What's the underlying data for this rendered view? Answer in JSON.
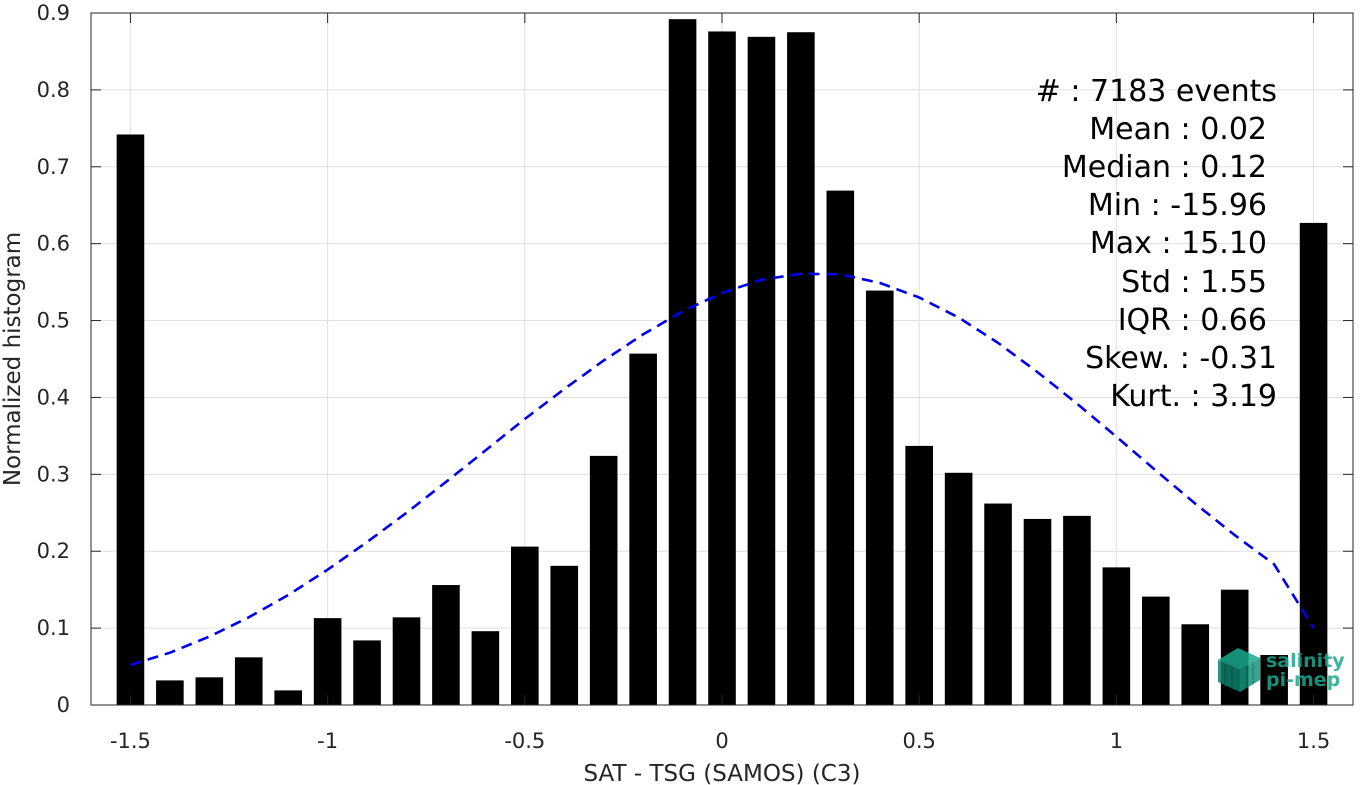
{
  "chart_data": {
    "type": "bar",
    "xlabel": "SAT - TSG (SAMOS) (C3)",
    "ylabel": "Normalized histogram",
    "xlim": [
      -1.6,
      1.6
    ],
    "ylim": [
      0,
      0.9
    ],
    "xticks": [
      -1.5,
      -1,
      -0.5,
      0,
      0.5,
      1,
      1.5
    ],
    "xtick_labels": [
      "-1.5",
      "-1",
      "-0.5",
      "0",
      "0.5",
      "1",
      "1.5"
    ],
    "yticks": [
      0,
      0.1,
      0.2,
      0.3,
      0.4,
      0.5,
      0.6,
      0.7,
      0.8,
      0.9
    ],
    "ytick_labels": [
      "0",
      "0.1",
      "0.2",
      "0.3",
      "0.4",
      "0.5",
      "0.6",
      "0.7",
      "0.8",
      "0.9"
    ],
    "grid": true,
    "bar_width": 0.07,
    "bar_color": "#000000",
    "bars": {
      "x": [
        -1.5,
        -1.4,
        -1.3,
        -1.2,
        -1.1,
        -1.0,
        -0.9,
        -0.8,
        -0.7,
        -0.6,
        -0.5,
        -0.4,
        -0.3,
        -0.2,
        -0.1,
        0.0,
        0.1,
        0.2,
        0.3,
        0.4,
        0.5,
        0.6,
        0.7,
        0.8,
        0.9,
        1.0,
        1.1,
        1.2,
        1.3,
        1.4,
        1.5
      ],
      "values": [
        0.742,
        0.032,
        0.036,
        0.062,
        0.019,
        0.113,
        0.084,
        0.114,
        0.156,
        0.096,
        0.206,
        0.181,
        0.324,
        0.457,
        0.892,
        0.876,
        0.869,
        0.875,
        0.669,
        0.539,
        0.337,
        0.302,
        0.262,
        0.242,
        0.246,
        0.179,
        0.141,
        0.105,
        0.15,
        0.065,
        0.627
      ]
    },
    "fit_curve": {
      "style": "dashed",
      "color": "#0000ee",
      "x": [
        -1.5,
        -1.4,
        -1.3,
        -1.2,
        -1.1,
        -1.0,
        -0.9,
        -0.8,
        -0.7,
        -0.6,
        -0.5,
        -0.4,
        -0.3,
        -0.2,
        -0.1,
        0.0,
        0.1,
        0.2,
        0.3,
        0.4,
        0.5,
        0.6,
        0.7,
        0.8,
        0.9,
        1.0,
        1.1,
        1.2,
        1.3,
        1.4,
        1.5
      ],
      "y": [
        0.052,
        0.068,
        0.089,
        0.114,
        0.143,
        0.176,
        0.212,
        0.25,
        0.29,
        0.331,
        0.372,
        0.411,
        0.448,
        0.482,
        0.512,
        0.536,
        0.553,
        0.561,
        0.56,
        0.549,
        0.53,
        0.504,
        0.471,
        0.433,
        0.392,
        0.349,
        0.305,
        0.262,
        0.221,
        0.183,
        0.1
      ]
    }
  },
  "stats": [
    {
      "text": "#  : 7183 events"
    },
    {
      "text": "Mean : 0.02"
    },
    {
      "text": "Median : 0.12"
    },
    {
      "text": "Min : -15.96"
    },
    {
      "text": "Max : 15.10"
    },
    {
      "text": "Std : 1.55"
    },
    {
      "text": "IQR : 0.66"
    },
    {
      "text": "Skew. : -0.31"
    },
    {
      "text": "Kurt. : 3.19"
    }
  ],
  "logo": {
    "line1": "salinity",
    "line2": "pi-mep",
    "color": "#1aa88e"
  }
}
